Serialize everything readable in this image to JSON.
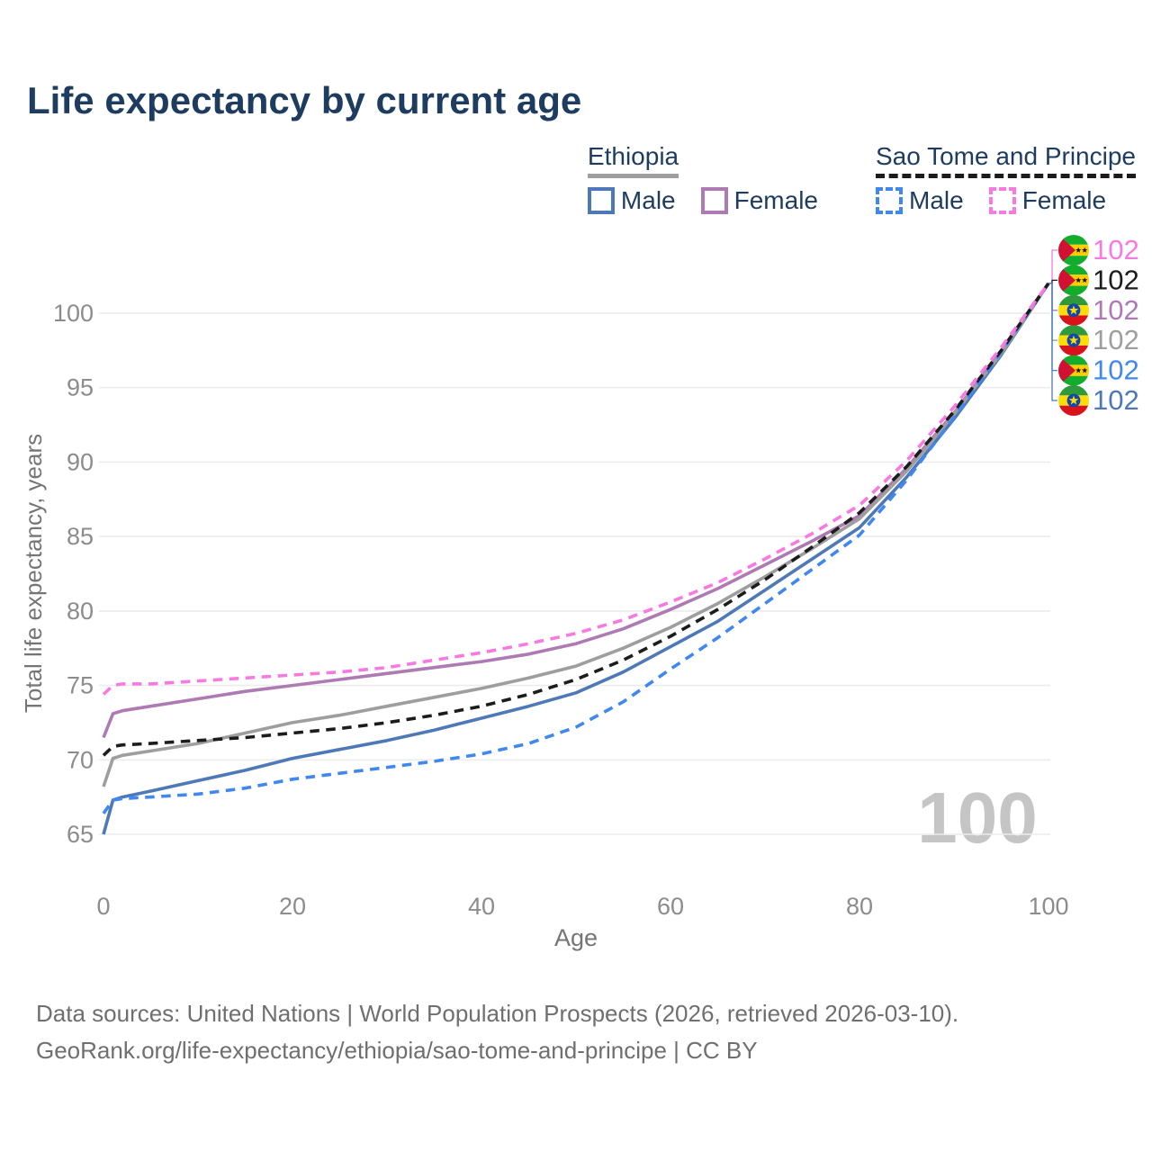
{
  "title": "Life expectancy by current age",
  "legend": {
    "groups": [
      {
        "label": "Ethiopia",
        "line_style": "solid",
        "underline_color": "#9e9e9e",
        "items": [
          {
            "label": "Male",
            "color": "#4d79b8"
          },
          {
            "label": "Female",
            "color": "#ae7ab3"
          }
        ]
      },
      {
        "label": "Sao Tome and Principe",
        "line_style": "dashed",
        "underline_color": "#1c1c1c",
        "items": [
          {
            "label": "Male",
            "color": "#4187f0"
          },
          {
            "label": "Female",
            "color": "#f879e2"
          }
        ]
      }
    ]
  },
  "chart_data": {
    "type": "line",
    "title": "Life expectancy by current age",
    "xlabel": "Age",
    "ylabel": "Total life expectancy, years",
    "xticks": [
      0,
      20,
      40,
      60,
      80,
      100
    ],
    "yticks": [
      65,
      70,
      75,
      80,
      85,
      90,
      95,
      100
    ],
    "xlim": [
      0,
      100
    ],
    "ylim": [
      63.5,
      103
    ],
    "grid": "horizontal",
    "legend_position": "top-right",
    "watermark": "100",
    "x": [
      0,
      1,
      2,
      5,
      10,
      15,
      20,
      25,
      30,
      35,
      40,
      45,
      50,
      55,
      60,
      65,
      70,
      75,
      80,
      85,
      90,
      95,
      100
    ],
    "series": [
      {
        "name": "Ethiopia Male",
        "group": "Ethiopia",
        "sex": "Male",
        "style": "solid",
        "color": "#4d79b8",
        "flag": "ethiopia",
        "values": [
          65.0,
          67.3,
          67.5,
          67.9,
          68.6,
          69.3,
          70.1,
          70.7,
          71.3,
          72.0,
          72.8,
          73.6,
          74.5,
          75.9,
          77.6,
          79.3,
          81.4,
          83.5,
          85.6,
          89.0,
          92.9,
          97.2,
          102
        ]
      },
      {
        "name": "Ethiopia Female",
        "group": "Ethiopia",
        "sex": "Female",
        "style": "solid",
        "color": "#ae7ab3",
        "flag": "ethiopia",
        "values": [
          71.5,
          73.1,
          73.3,
          73.6,
          74.1,
          74.6,
          75.0,
          75.4,
          75.8,
          76.2,
          76.6,
          77.1,
          77.8,
          78.8,
          80.1,
          81.5,
          83.1,
          84.7,
          86.4,
          89.6,
          93.3,
          97.4,
          102
        ]
      },
      {
        "name": "Ethiopia Both sexes",
        "group": "Ethiopia",
        "sex": "Both sexes",
        "style": "solid",
        "color": "#9e9e9e",
        "flag": "ethiopia",
        "values": [
          68.2,
          70.1,
          70.3,
          70.6,
          71.1,
          71.8,
          72.5,
          73.0,
          73.6,
          74.2,
          74.8,
          75.5,
          76.3,
          77.5,
          78.9,
          80.5,
          82.3,
          84.2,
          86.2,
          89.4,
          93.2,
          97.3,
          102
        ]
      },
      {
        "name": "Sao Tome and Principe Male",
        "group": "Sao Tome and Principe",
        "sex": "Male",
        "style": "dashed",
        "color": "#4187f0",
        "flag": "sao-tome-and-principe",
        "values": [
          66.4,
          67.3,
          67.4,
          67.5,
          67.7,
          68.1,
          68.7,
          69.1,
          69.5,
          69.9,
          70.4,
          71.1,
          72.2,
          73.9,
          76.1,
          78.2,
          80.5,
          82.8,
          85.1,
          88.8,
          93.0,
          97.4,
          102
        ]
      },
      {
        "name": "Sao Tome and Principe Both sexes",
        "group": "Sao Tome and Principe",
        "sex": "Both sexes",
        "style": "dashed",
        "color": "#1c1c1c",
        "flag": "sao-tome-and-principe",
        "values": [
          70.3,
          70.9,
          71.0,
          71.1,
          71.3,
          71.5,
          71.8,
          72.1,
          72.5,
          73.0,
          73.6,
          74.4,
          75.4,
          76.7,
          78.3,
          80.1,
          82.1,
          84.3,
          86.6,
          89.7,
          93.4,
          97.5,
          102
        ]
      },
      {
        "name": "Sao Tome and Principe Female",
        "group": "Sao Tome and Principe",
        "sex": "Female",
        "style": "dashed",
        "color": "#f879e2",
        "flag": "sao-tome-and-principe",
        "values": [
          74.4,
          75.0,
          75.1,
          75.1,
          75.3,
          75.5,
          75.7,
          75.9,
          76.2,
          76.7,
          77.2,
          77.8,
          78.5,
          79.4,
          80.6,
          81.9,
          83.5,
          85.2,
          87.1,
          90.1,
          93.7,
          97.7,
          102
        ]
      }
    ],
    "end_labels": [
      {
        "series": "Sao Tome and Principe Female",
        "flag": "sao-tome-and-principe",
        "value": "102",
        "color": "#f879e2"
      },
      {
        "series": "Sao Tome and Principe Both sexes",
        "flag": "sao-tome-and-principe",
        "value": "102",
        "color": "#1c1c1c"
      },
      {
        "series": "Ethiopia Female",
        "flag": "ethiopia",
        "value": "102",
        "color": "#ae7ab3"
      },
      {
        "series": "Ethiopia Both sexes",
        "flag": "ethiopia",
        "value": "102",
        "color": "#9e9e9e"
      },
      {
        "series": "Sao Tome and Principe Male",
        "flag": "sao-tome-and-principe",
        "value": "102",
        "color": "#4187f0"
      },
      {
        "series": "Ethiopia Male",
        "flag": "ethiopia",
        "value": "102",
        "color": "#4d79b8"
      }
    ]
  },
  "footer": {
    "line1": "Data sources: United Nations | World Population Prospects (2026, retrieved 2026-03-10).",
    "line2": "GeoRank.org/life-expectancy/ethiopia/sao-tome-and-principe | CC BY"
  }
}
